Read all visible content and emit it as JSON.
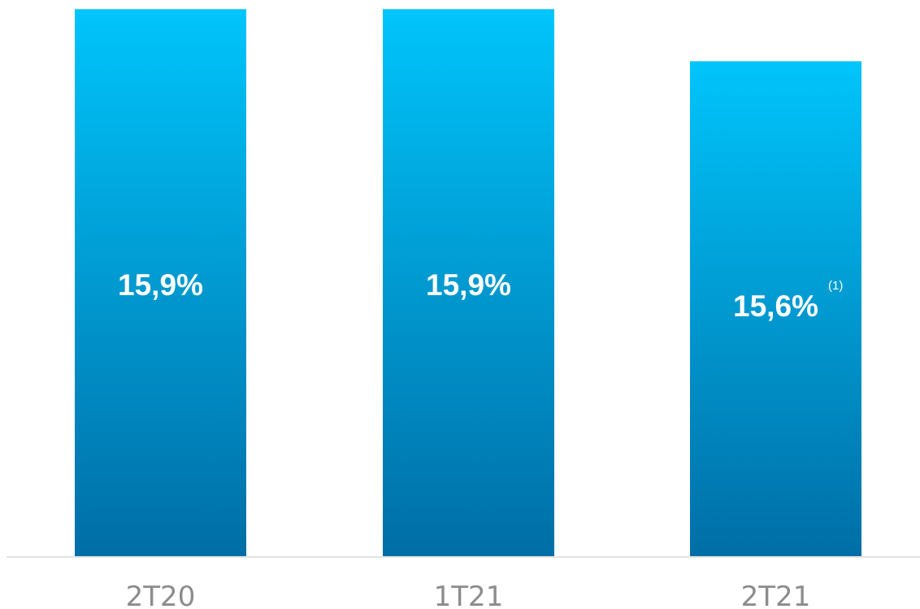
{
  "chart_data": {
    "type": "bar",
    "categories": [
      "2T20",
      "1T21",
      "2T21"
    ],
    "values": [
      15.9,
      15.9,
      15.6
    ],
    "data_labels": [
      "15,9%",
      "15,9%",
      "15,6%"
    ],
    "label_notes": [
      "",
      "",
      "(1)"
    ],
    "title": "",
    "xlabel": "",
    "ylabel": "",
    "ylim": [
      12.75,
      15.92
    ],
    "grid": false,
    "legend": "none",
    "colors": {
      "bar_top": "#00c5fb",
      "bar_bottom": "#006ea6",
      "axis_line": "#e3e3e3",
      "data_label": "#ffffff",
      "category_label": "#8c8c8c"
    }
  }
}
